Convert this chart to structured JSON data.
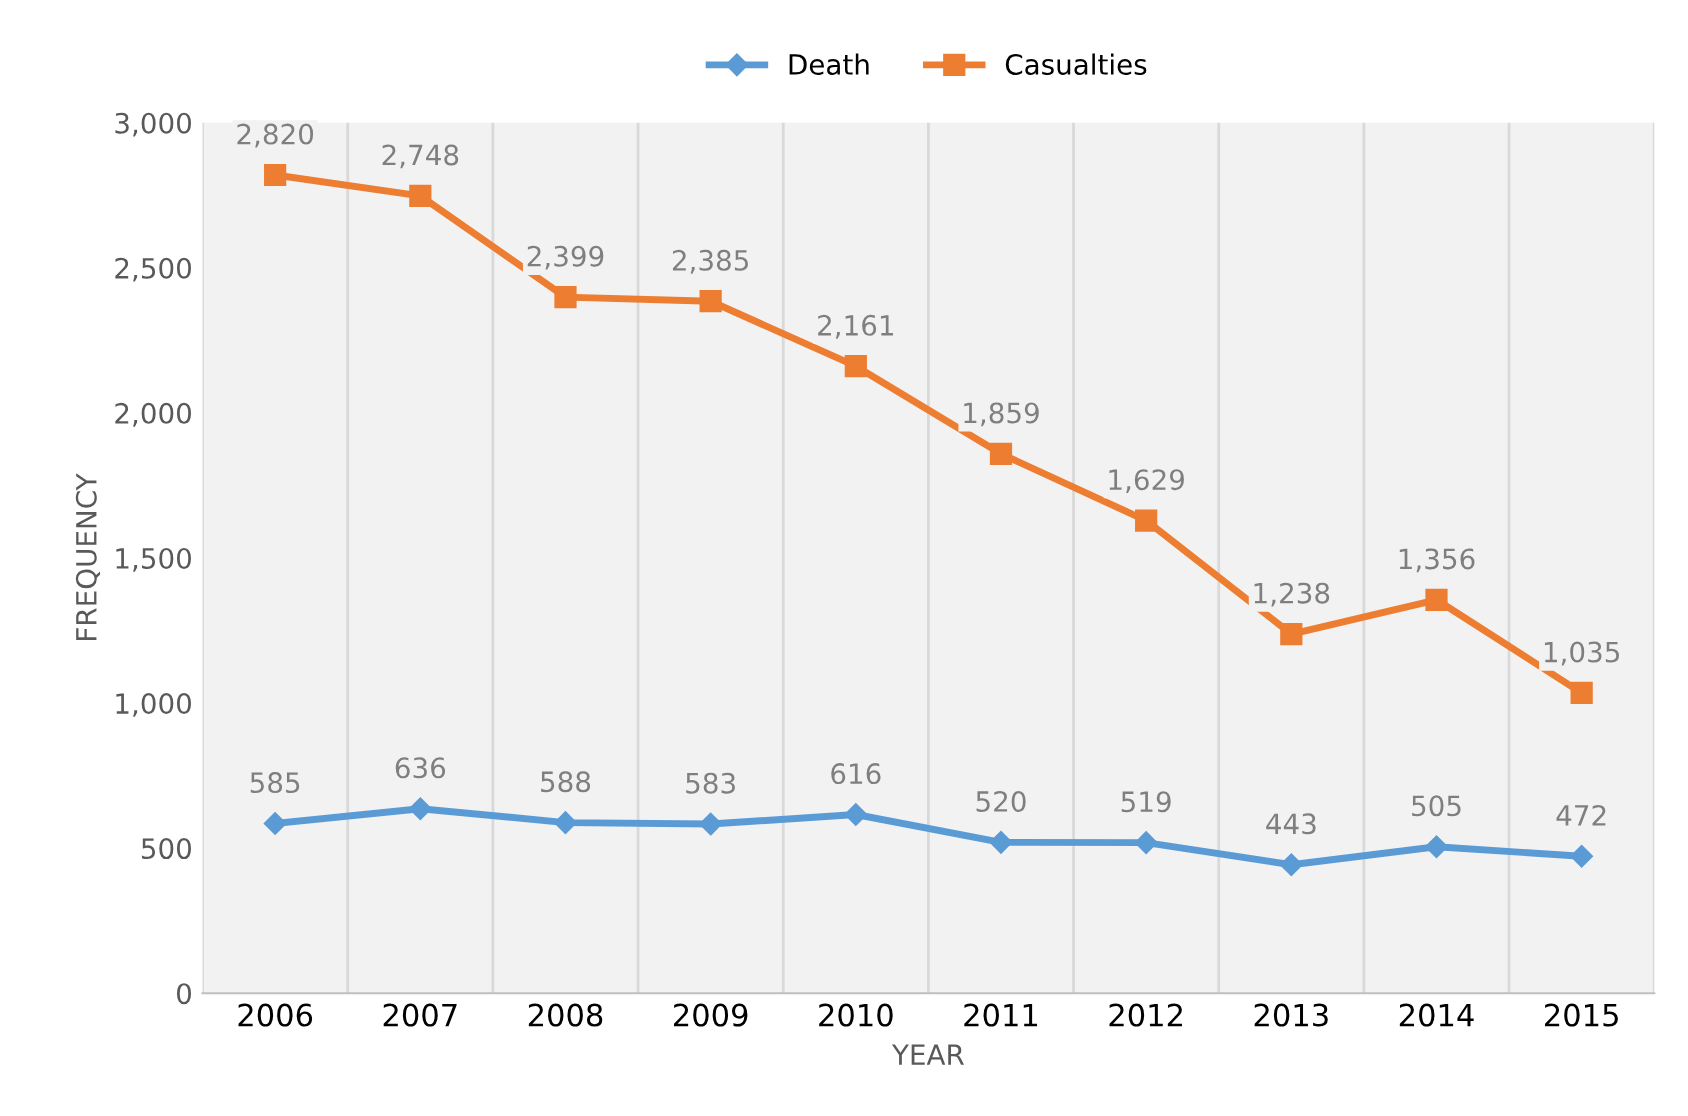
{
  "chart_data": {
    "type": "line",
    "xlabel": "YEAR",
    "ylabel": "FREQUENCY",
    "categories": [
      "2006",
      "2007",
      "2008",
      "2009",
      "2010",
      "2011",
      "2012",
      "2013",
      "2014",
      "2015"
    ],
    "series": [
      {
        "name": "Death",
        "color": "#5b9bd5",
        "marker": "diamond",
        "values": [
          585,
          636,
          588,
          583,
          616,
          520,
          519,
          443,
          505,
          472
        ],
        "value_labels": [
          "585",
          "636",
          "588",
          "583",
          "616",
          "520",
          "519",
          "443",
          "505",
          "472"
        ]
      },
      {
        "name": "Casualties",
        "color": "#ed7d31",
        "marker": "square",
        "values": [
          2820,
          2748,
          2399,
          2385,
          2161,
          1859,
          1629,
          1238,
          1356,
          1035
        ],
        "value_labels": [
          "2,820",
          "2,748",
          "2,399",
          "2,385",
          "2,161",
          "1,859",
          "1,629",
          "1,238",
          "1,356",
          "1,035"
        ]
      }
    ],
    "ylim": [
      0,
      3000
    ],
    "yticks": [
      0,
      500,
      {
        "value": 1000,
        "label": "1,000"
      },
      {
        "value": 1500,
        "label": "1,500"
      },
      {
        "value": 2000,
        "label": "2,000"
      },
      {
        "value": 2500,
        "label": "2,500"
      },
      {
        "value": 3000,
        "label": "3,000"
      }
    ],
    "grid": "x",
    "legend": "top",
    "line_style": "solid"
  }
}
